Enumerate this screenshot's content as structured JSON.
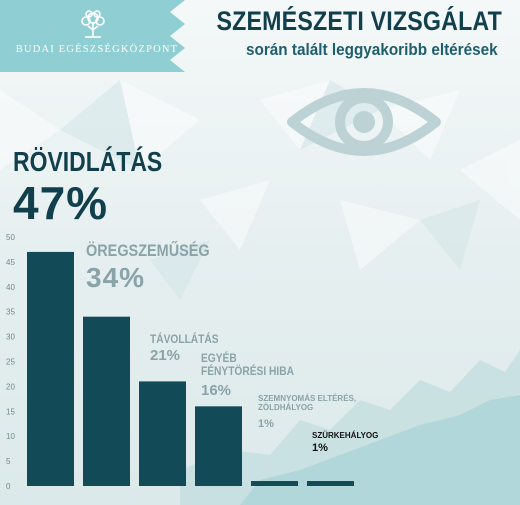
{
  "header": {
    "logo_text": "BUDAI EGÉSZSÉGKÖZPONT",
    "title": "SZEMÉSZETI VIZSGÁLAT",
    "subtitle": "során talált leggyakoribb eltérések"
  },
  "icons": [
    "tree-logo-icon",
    "eye-icon"
  ],
  "colors": {
    "bar": "#134a58",
    "title": "#123f4c",
    "muted": "#8aa3a8",
    "background": "#eaf1f1"
  },
  "chart_data": {
    "type": "bar",
    "categories": [
      "RÖVIDLÁTÁS",
      "ÖREGSZEMŰSÉG",
      "TÁVOLLÁTÁS",
      "EGYÉB FÉNYTÖRÉSI HIBA",
      "SZEMNYOMÁS ELTÉRÉS, ZÖLDHÁLYOG",
      "SZÜRKEHÁLYOG"
    ],
    "values": [
      47,
      34,
      21,
      16,
      1,
      1
    ],
    "labels": [
      {
        "name": "RÖVIDLÁTÁS",
        "value": "47%"
      },
      {
        "name": "ÖREGSZEMŰSÉG",
        "value": "34%"
      },
      {
        "name": "TÁVOLLÁTÁS",
        "value": "21%"
      },
      {
        "name": "EGYÉB\nFÉNYTÖRÉSI HIBA",
        "value": "16%"
      },
      {
        "name": "SZEMNYOMÁS ELTÉRÉS,\nZÖLDHÁLYOG",
        "value": "1%"
      },
      {
        "name": "SZÜRKEHÁLYOG",
        "value": "1%"
      }
    ],
    "ylim": [
      0,
      50
    ],
    "yticks": [
      "0",
      "5",
      "10",
      "15",
      "20",
      "25",
      "30",
      "35",
      "40",
      "45",
      "50"
    ],
    "grid": false
  }
}
